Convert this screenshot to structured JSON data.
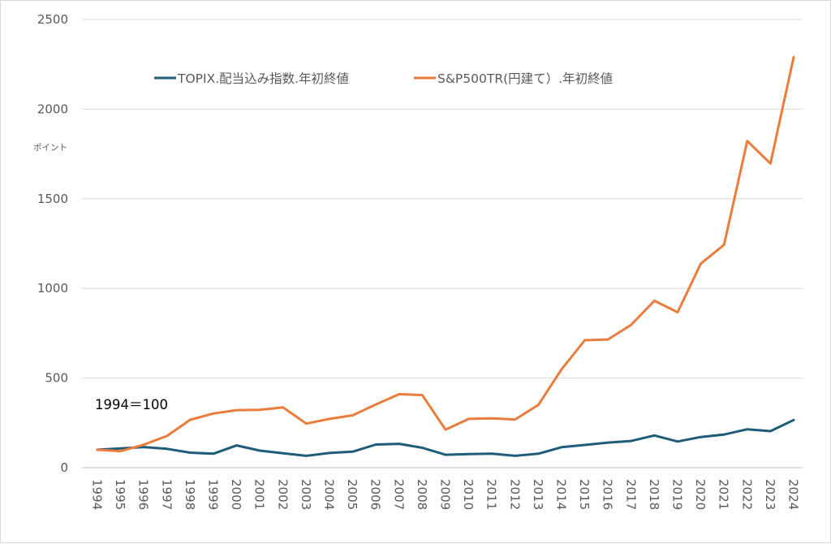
{
  "chart_data": {
    "type": "line",
    "title": "",
    "xlabel": "",
    "ylabel": "ポイント",
    "ylim": [
      0,
      2500
    ],
    "yticks": [
      0,
      500,
      1000,
      1500,
      2000,
      2500
    ],
    "grid": true,
    "legend_position": "top",
    "annotation": "1994＝100",
    "categories": [
      "1994",
      "1995",
      "1996",
      "1997",
      "1998",
      "1999",
      "2000",
      "2001",
      "2002",
      "2003",
      "2004",
      "2005",
      "2006",
      "2007",
      "2008",
      "2009",
      "2010",
      "2011",
      "2012",
      "2013",
      "2014",
      "2015",
      "2016",
      "2017",
      "2018",
      "2019",
      "2020",
      "2021",
      "2022",
      "2023",
      "2024"
    ],
    "series": [
      {
        "name": "TOPIX.配当込み指数.年初終値",
        "color": "#1f5c7a",
        "values": [
          100,
          108,
          115,
          105,
          84,
          78,
          124,
          95,
          80,
          66,
          82,
          89,
          129,
          133,
          111,
          72,
          76,
          78,
          66,
          78,
          114,
          127,
          140,
          149,
          180,
          146,
          171,
          185,
          214,
          204,
          266
        ]
      },
      {
        "name": "S&P500TR(円建て）.年初終値",
        "color": "#ea7c3c",
        "values": [
          100,
          92,
          128,
          177,
          267,
          302,
          321,
          323,
          336,
          246,
          272,
          292,
          353,
          410,
          405,
          212,
          272,
          275,
          269,
          350,
          549,
          711,
          715,
          797,
          931,
          867,
          1138,
          1243,
          1822,
          1697,
          2290
        ]
      }
    ]
  }
}
